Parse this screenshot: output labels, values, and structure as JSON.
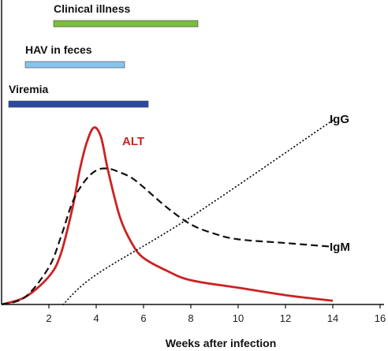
{
  "chart_data": {
    "type": "line",
    "title": "",
    "xlabel": "Weeks after infection",
    "ylabel": "",
    "xlim": [
      0,
      16
    ],
    "ylim": [
      0,
      100
    ],
    "xticks": [
      2,
      4,
      6,
      8,
      10,
      12,
      14,
      16
    ],
    "grid": false,
    "bars": [
      {
        "name": "Clinical illness",
        "start": 2.2,
        "end": 8.3,
        "color": "#7cbd3a"
      },
      {
        "name": "HAV in feces",
        "start": 1.0,
        "end": 5.2,
        "color": "#86c4ec"
      },
      {
        "name": "Viremia",
        "start": 0.3,
        "end": 6.2,
        "color": "#2b4a9e"
      }
    ],
    "series": [
      {
        "name": "ALT",
        "style": "solid",
        "color": "#cc2222",
        "x": [
          0,
          1,
          2,
          2.5,
          3,
          3.3,
          3.6,
          3.9,
          4.2,
          4.5,
          5,
          5.5,
          6,
          7,
          8,
          10,
          12,
          14
        ],
        "y": [
          0,
          4,
          15,
          27,
          52,
          72,
          87,
          95,
          90,
          72,
          47,
          33,
          25,
          18,
          13,
          9,
          5,
          2
        ]
      },
      {
        "name": "IgM",
        "style": "dashed",
        "color": "#111111",
        "x": [
          0,
          1,
          2,
          2.5,
          3,
          3.5,
          4,
          4.5,
          5,
          5.5,
          6,
          7,
          8,
          9,
          10,
          12,
          14
        ],
        "y": [
          0,
          4,
          20,
          36,
          55,
          66,
          72,
          73,
          71,
          68,
          63,
          52,
          43,
          38,
          35,
          33,
          31
        ]
      },
      {
        "name": "IgG",
        "style": "dotted",
        "color": "#111111",
        "x": [
          2.6,
          4,
          8,
          14
        ],
        "y": [
          0,
          16,
          47,
          99
        ]
      }
    ]
  }
}
